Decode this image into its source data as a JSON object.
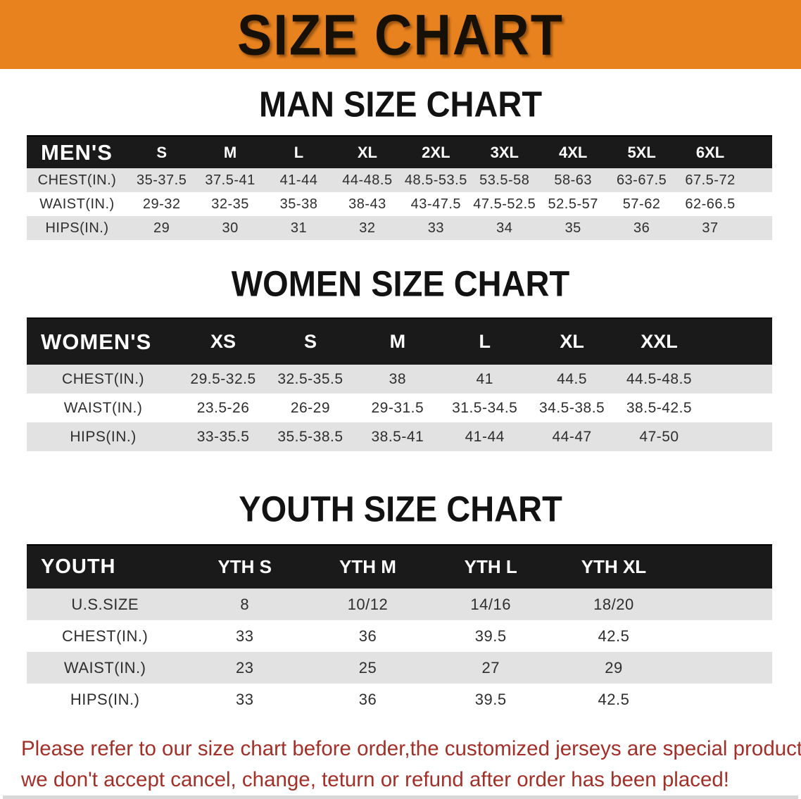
{
  "banner": {
    "title": "SIZE CHART"
  },
  "sections": [
    {
      "heading": "MAN SIZE CHART",
      "table": {
        "label": "MEN'S",
        "columns": [
          "S",
          "M",
          "L",
          "XL",
          "2XL",
          "3XL",
          "4XL",
          "5XL",
          "6XL"
        ],
        "rows": [
          {
            "label": "CHEST(IN.)",
            "values": [
              "35-37.5",
              "37.5-41",
              "41-44",
              "44-48.5",
              "48.5-53.5",
              "53.5-58",
              "58-63",
              "63-67.5",
              "67.5-72"
            ]
          },
          {
            "label": "WAIST(IN.)",
            "values": [
              "29-32",
              "32-35",
              "35-38",
              "38-43",
              "43-47.5",
              "47.5-52.5",
              "52.5-57",
              "57-62",
              "62-66.5"
            ]
          },
          {
            "label": "HIPS(IN.)",
            "values": [
              "29",
              "30",
              "31",
              "32",
              "33",
              "34",
              "35",
              "36",
              "37"
            ]
          }
        ]
      }
    },
    {
      "heading": "WOMEN SIZE CHART",
      "table": {
        "label": "WOMEN'S",
        "columns": [
          "XS",
          "S",
          "M",
          "L",
          "XL",
          "XXL"
        ],
        "rows": [
          {
            "label": "CHEST(IN.)",
            "values": [
              "29.5-32.5",
              "32.5-35.5",
              "38",
              "41",
              "44.5",
              "44.5-48.5"
            ]
          },
          {
            "label": "WAIST(IN.)",
            "values": [
              "23.5-26",
              "26-29",
              "29-31.5",
              "31.5-34.5",
              "34.5-38.5",
              "38.5-42.5"
            ]
          },
          {
            "label": "HIPS(IN.)",
            "values": [
              "33-35.5",
              "35.5-38.5",
              "38.5-41",
              "41-44",
              "44-47",
              "47-50"
            ]
          }
        ]
      }
    },
    {
      "heading": "YOUTH SIZE CHART",
      "table": {
        "label": "YOUTH",
        "columns": [
          "YTH S",
          "YTH M",
          "YTH L",
          "YTH XL"
        ],
        "rows": [
          {
            "label": "U.S.SIZE",
            "values": [
              "8",
              "10/12",
              "14/16",
              "18/20"
            ]
          },
          {
            "label": "CHEST(IN.)",
            "values": [
              "33",
              "36",
              "39.5",
              "42.5"
            ]
          },
          {
            "label": "WAIST(IN.)",
            "values": [
              "23",
              "25",
              "27",
              "29"
            ]
          },
          {
            "label": "HIPS(IN.)",
            "values": [
              "33",
              "36",
              "39.5",
              "42.5"
            ]
          }
        ]
      }
    }
  ],
  "footnote": {
    "line1": "Please refer to our size chart before order,the customized jerseys are special products,",
    "line2": "we don't accept cancel, change, teturn or refund after order has been placed!"
  },
  "colors": {
    "banner-bg": "#E8821F",
    "band": "#1A1A1A",
    "row-gray": "#E2E2E3",
    "footnote-red": "#A33028"
  }
}
